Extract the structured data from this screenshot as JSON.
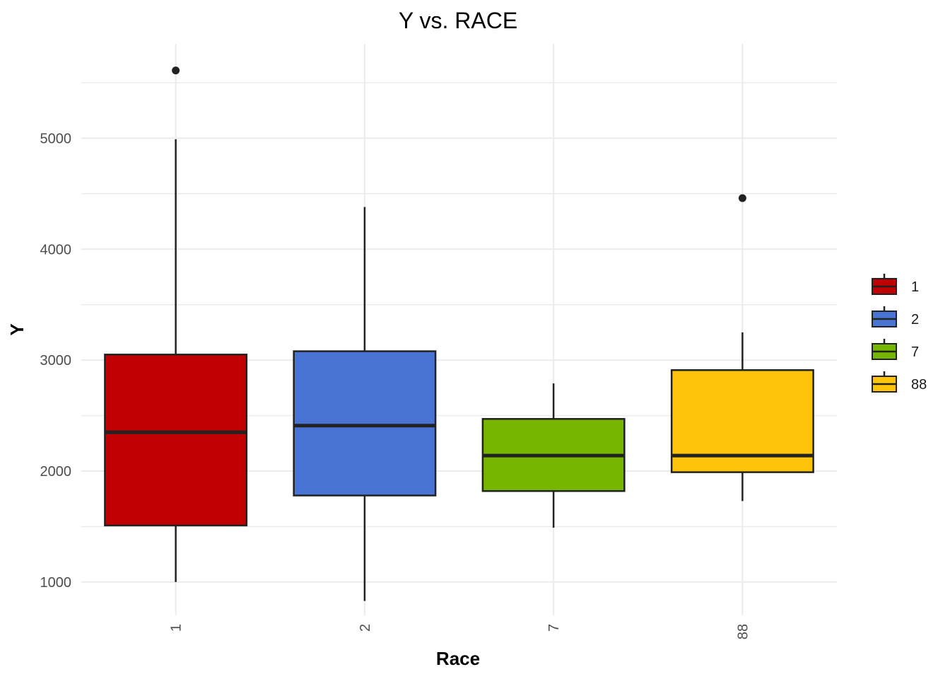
{
  "chart_data": {
    "type": "boxplot",
    "title": "Y vs. RACE",
    "xlabel": "Race",
    "ylabel": "Y",
    "categories": [
      "1",
      "2",
      "7",
      "88"
    ],
    "ylim": [
      700,
      5850
    ],
    "yticks": [
      1000,
      2000,
      3000,
      4000,
      5000
    ],
    "grid": true,
    "legend": {
      "position": "right",
      "entries": [
        "1",
        "2",
        "7",
        "88"
      ]
    },
    "colors": [
      "#c00000",
      "#4a74d3",
      "#76b600",
      "#fec40b"
    ],
    "boxes": [
      {
        "category": "1",
        "lower_whisker": 1000,
        "q1": 1510,
        "median": 2350,
        "q3": 3050,
        "upper_whisker": 4990,
        "outliers": [
          5610
        ]
      },
      {
        "category": "2",
        "lower_whisker": 830,
        "q1": 1780,
        "median": 2410,
        "q3": 3080,
        "upper_whisker": 4380,
        "outliers": []
      },
      {
        "category": "7",
        "lower_whisker": 1490,
        "q1": 1820,
        "median": 2140,
        "q3": 2470,
        "upper_whisker": 2790,
        "outliers": []
      },
      {
        "category": "88",
        "lower_whisker": 1730,
        "q1": 1990,
        "median": 2140,
        "q3": 2910,
        "upper_whisker": 3250,
        "outliers": [
          4460
        ]
      }
    ]
  }
}
